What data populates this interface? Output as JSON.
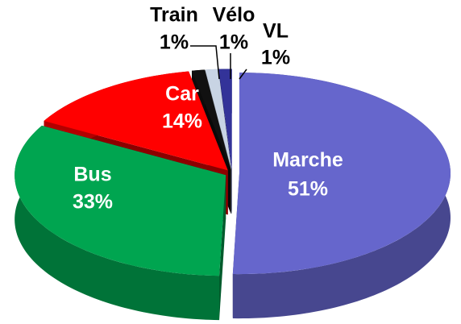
{
  "chart_data": {
    "type": "pie",
    "categories": [
      "Marche",
      "Bus",
      "Car",
      "Train",
      "Vélo",
      "VL"
    ],
    "values": [
      51,
      33,
      14,
      1,
      1,
      1
    ],
    "value_labels": [
      "51%",
      "33%",
      "14%",
      "1%",
      "1%",
      "1%"
    ],
    "colors": [
      "#6666cc",
      "#00a550",
      "#ff0000",
      "#111111",
      "#c8d4e4",
      "#333399"
    ]
  }
}
